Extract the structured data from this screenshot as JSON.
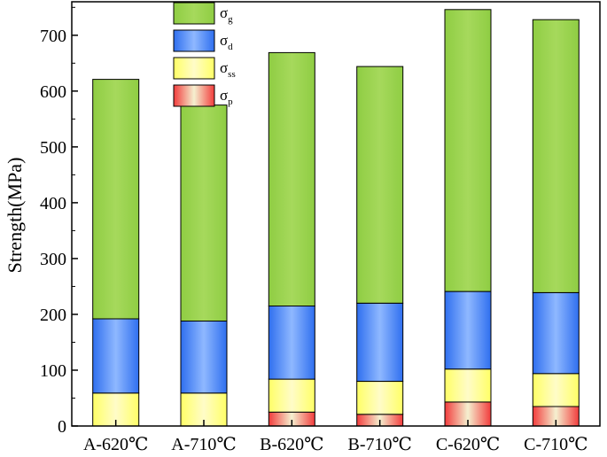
{
  "chart_data": {
    "type": "bar",
    "stacked": true,
    "categories": [
      "A-620℃",
      "A-710℃",
      "B-620℃",
      "B-710℃",
      "C-620℃",
      "C-710℃"
    ],
    "series": [
      {
        "name": "σp",
        "symbol": "σ",
        "subscript": "p",
        "color": "#f23c3c",
        "values": [
          0,
          0,
          25,
          21,
          43,
          35
        ]
      },
      {
        "name": "σss",
        "symbol": "σ",
        "subscript": "ss",
        "color": "#ffff66",
        "values": [
          59,
          59,
          59,
          59,
          59,
          59
        ]
      },
      {
        "name": "σd",
        "symbol": "σ",
        "subscript": "d",
        "color": "#2f6fef",
        "values": [
          133,
          129,
          131,
          140,
          139,
          145
        ]
      },
      {
        "name": "σg",
        "symbol": "σ",
        "subscript": "g",
        "color": "#8fcd43",
        "values": [
          429,
          387,
          454,
          424,
          505,
          489
        ]
      }
    ],
    "legend_order": [
      3,
      2,
      1,
      0
    ],
    "legend_position": "top-left",
    "ylabel": "Strength(MPa)",
    "xlabel": "",
    "ylim": [
      0,
      760
    ],
    "yticks": [
      0,
      100,
      200,
      300,
      400,
      500,
      600,
      700
    ],
    "grid": false
  }
}
